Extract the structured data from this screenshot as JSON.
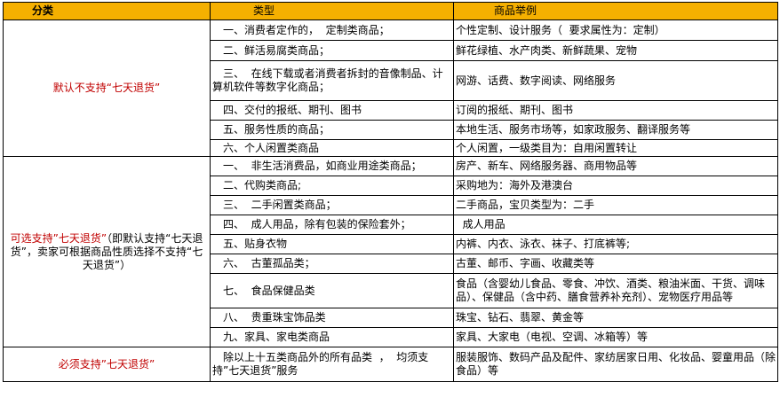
{
  "header": {
    "col1": "分类",
    "col2": "类型",
    "col3": "商品举例"
  },
  "groups": [
    {
      "category_red": "默认不支持“七天退货”",
      "category_rest": "",
      "rows": [
        {
          "type": "一、消费者定作的，  定制类商品；",
          "example": "个性定制、设计服务（  要求属性为：定制）"
        },
        {
          "type": "二、鲜活易腐类商品；",
          "example": "鲜花绿植、水产肉类、新鲜蔬果、宠物"
        },
        {
          "type": "三、  在线下载或者消费者拆封的音像制品、计算机软件等数字化商品；",
          "example": "网游、话费、数字阅读、网络服务"
        },
        {
          "type": "四、交付的报纸、期刊、图书",
          "example": "订阅的报纸、期刊、图书"
        },
        {
          "type": "五、服务性质的商品；",
          "example": "本地生活、服务市场等，如家政服务、翻译服务等"
        },
        {
          "type": "六、个人闲置类商品",
          "example": "个人闲置，一级类目为：自用闲置转让"
        }
      ]
    },
    {
      "category_red": "可选支持”七天退货”",
      "category_rest": "（即默认支持“七天退货”，卖家可根据商品性质选择不支持“七天退货”）",
      "rows": [
        {
          "type": "一、  非生活消费品，如商业用途类商品；",
          "example": "房产、新车、网络服务器、商用物品等"
        },
        {
          "type": "二、代购类商品;",
          "example": "采购地为：海外及港澳台"
        },
        {
          "type": "三、  二手闲置类商品；",
          "example": "二手商品，宝贝类型为：二手"
        },
        {
          "type": "四、  成人用品，除有包装的保险套外；",
          "example": "  成人用品"
        },
        {
          "type": "五、贴身衣物",
          "example": "内裤、内衣、泳衣、袜子、打底裤等;"
        },
        {
          "type": "六、  古董孤品类；",
          "example": "古董、邮币、字画、收藏类等"
        },
        {
          "type": "七、  食品保健品类",
          "example": "食品（含婴幼儿食品、零食、冲饮、酒类、粮油米面、干货、调味品）、保健品（含中药、膳食营养补充剂）、宠物医疗用品等"
        },
        {
          "type": "八、  贵重珠宝饰品类",
          "example": "珠宝、钻石、翡翠、黄金等"
        },
        {
          "type": "九、家具、家电类商品",
          "example": "家具、大家电（电视、空调、冰箱等）等"
        }
      ]
    },
    {
      "category_red": "必须支持”七天退货”",
      "category_rest": "",
      "rows": [
        {
          "type": "除以上十五类商品外的所有品类  ，  均须支持”七天退货”服务",
          "example": "服装服饰、数码产品及配件、家纺居家日用、化妆品、婴童用品（除食品）等"
        }
      ]
    }
  ],
  "colors": {
    "header_bg": "#F5B000",
    "category_text": "#C00000"
  }
}
